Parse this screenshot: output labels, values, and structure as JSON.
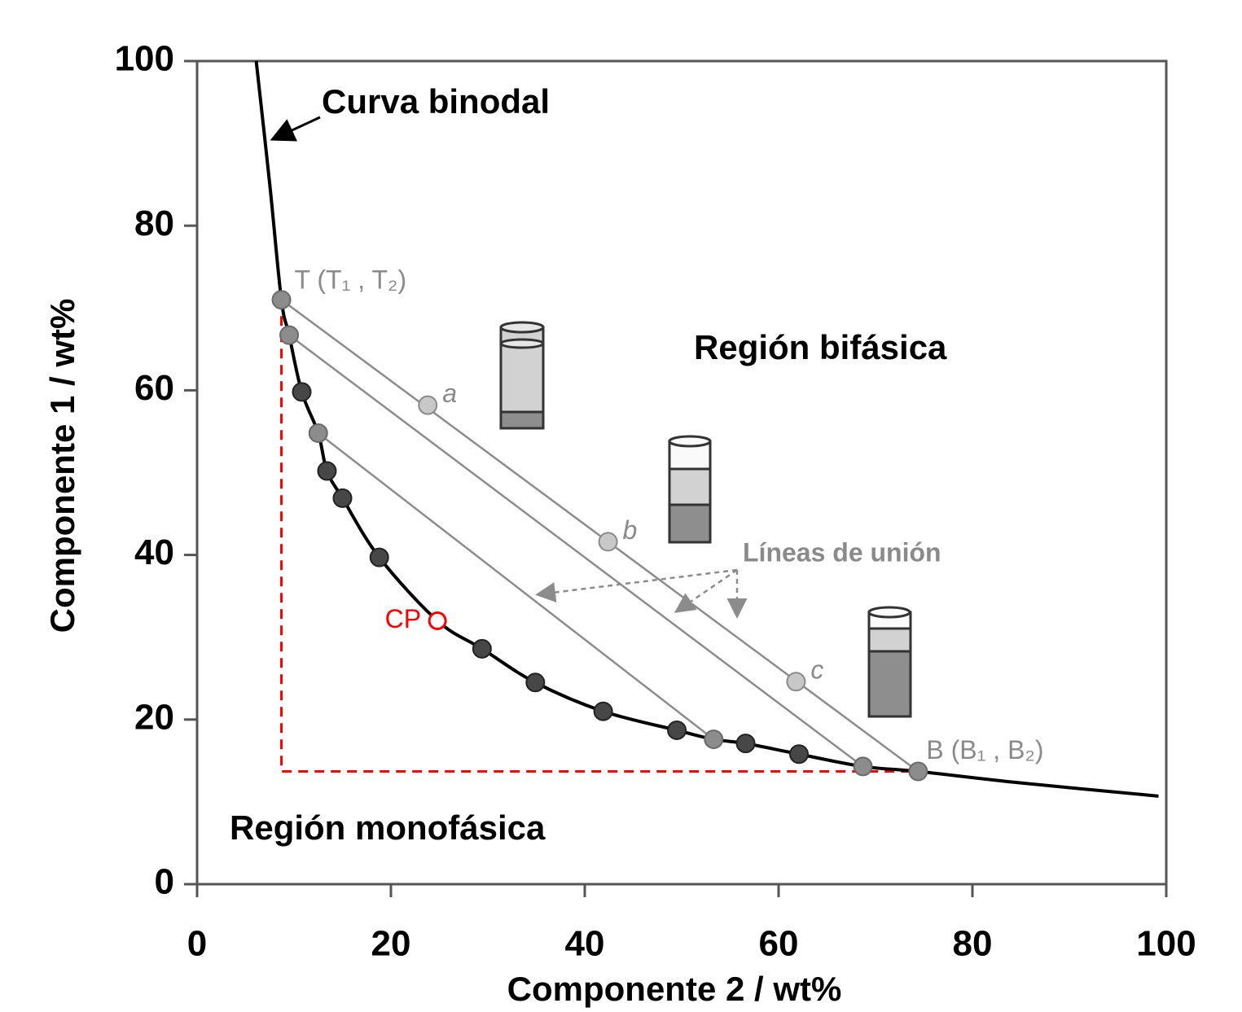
{
  "chart_data": {
    "type": "scatter",
    "x_label": "Componente 2 / wt%",
    "y_label": "Componente 1 / wt%",
    "xlim": [
      0,
      100
    ],
    "ylim": [
      0,
      100
    ],
    "xticks": [
      0,
      20,
      40,
      60,
      80,
      100
    ],
    "yticks": [
      0,
      20,
      40,
      60,
      80,
      100
    ],
    "binodal_curve": {
      "label": "Curva binodal",
      "color": "#000000",
      "x": [
        6.1,
        7.5,
        8.7,
        9.5,
        10.8,
        12.5,
        13.4,
        15.0,
        18.8,
        24.8,
        29.4,
        34.9,
        41.9,
        49.5,
        53.3,
        56.6,
        62.1,
        68.7,
        74.4,
        85.0,
        99.2
      ],
      "y": [
        100,
        85,
        71.0,
        66.7,
        59.8,
        54.8,
        50.2,
        46.9,
        39.7,
        32.0,
        28.6,
        24.5,
        21.0,
        18.7,
        17.6,
        17.1,
        15.8,
        14.3,
        13.7,
        12.3,
        10.7
      ]
    },
    "points": {
      "color": "#474747",
      "x": [
        10.8,
        13.4,
        15.0,
        18.8,
        29.4,
        34.9,
        41.9,
        49.5,
        56.6,
        62.1
      ],
      "y": [
        59.8,
        50.2,
        46.9,
        39.7,
        28.6,
        24.5,
        21.0,
        18.7,
        17.1,
        15.8
      ]
    },
    "tie_line_color": "#8c8c8c",
    "tie_lines_label": "Líneas de unión",
    "tie_lines": [
      {
        "x": [
          8.7,
          74.4
        ],
        "y": [
          71.0,
          13.7
        ],
        "labels": [
          "T (T₁ , T₂)",
          "B (B₁ , B₂)"
        ]
      },
      {
        "x": [
          9.5,
          68.7
        ],
        "y": [
          66.7,
          14.3
        ]
      },
      {
        "x": [
          12.5,
          53.3
        ],
        "y": [
          54.8,
          17.6
        ]
      }
    ],
    "mixtures": {
      "color": "#c8c8c8",
      "labels": [
        "a",
        "b",
        "c"
      ],
      "x": [
        23.8,
        42.4,
        61.8
      ],
      "y": [
        58.2,
        41.6,
        24.6
      ]
    },
    "critical_point": {
      "label": "CP",
      "color": "#ff0000",
      "x": 24.8,
      "y": 32.0
    },
    "regions": [
      "Región bifásica",
      "Región monofásica"
    ]
  }
}
